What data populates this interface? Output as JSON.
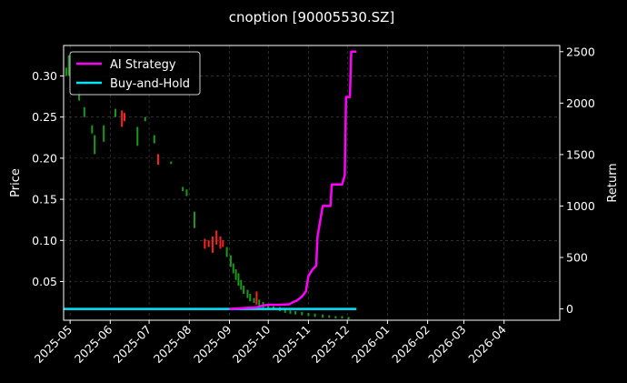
{
  "chart_data": {
    "type": "line",
    "title": "cnoption [90005530.SZ]",
    "left_axis": {
      "label": "Price",
      "ylim": [
        0.003,
        0.337
      ],
      "ticks": [
        0.05,
        0.1,
        0.15,
        0.2,
        0.25,
        0.3
      ],
      "tick_labels": [
        "0.05",
        "0.10",
        "0.15",
        "0.20",
        "0.25",
        "0.30"
      ]
    },
    "right_axis": {
      "label": "Return",
      "ylim": [
        -110,
        2560
      ],
      "ticks": [
        0,
        500,
        1000,
        1500,
        2000,
        2500
      ],
      "tick_labels": [
        "0",
        "500",
        "1000",
        "1500",
        "2000",
        "2500"
      ]
    },
    "x_axis": {
      "type": "date",
      "range": [
        "2025-04-26",
        "2026-05-14"
      ],
      "ticks": [
        "2025-05-01",
        "2025-06-01",
        "2025-07-01",
        "2025-08-01",
        "2025-09-01",
        "2025-10-01",
        "2025-11-01",
        "2025-12-01",
        "2026-01-01",
        "2026-02-01",
        "2026-03-01",
        "2026-04-01"
      ],
      "tick_labels": [
        "2025-05",
        "2025-06",
        "2025-07",
        "2025-08",
        "2025-09",
        "2025-10",
        "2025-11",
        "2025-12",
        "2026-01",
        "2026-02",
        "2026-03",
        "2026-04"
      ]
    },
    "grid": true,
    "legend": {
      "placement": "top-left",
      "entries": [
        "AI Strategy",
        "Buy-and-Hold"
      ]
    },
    "colors": {
      "background": "#000000",
      "ai_strategy": "#ff00ff",
      "buy_and_hold": "#00e5ff",
      "up": "#ff2020",
      "down": "#1a9a1a",
      "grid": "#4a4a4a"
    },
    "series": [
      {
        "name": "AI Strategy",
        "axis": "right",
        "points": [
          [
            "2025-09-01",
            0
          ],
          [
            "2025-09-08",
            5
          ],
          [
            "2025-09-15",
            10
          ],
          [
            "2025-09-22",
            15
          ],
          [
            "2025-09-26",
            30
          ],
          [
            "2025-10-01",
            40
          ],
          [
            "2025-10-10",
            40
          ],
          [
            "2025-10-17",
            45
          ],
          [
            "2025-10-20",
            65
          ],
          [
            "2025-10-23",
            80
          ],
          [
            "2025-10-27",
            120
          ],
          [
            "2025-10-30",
            170
          ],
          [
            "2025-11-01",
            320
          ],
          [
            "2025-11-04",
            380
          ],
          [
            "2025-11-07",
            420
          ],
          [
            "2025-11-08",
            700
          ],
          [
            "2025-11-12",
            1000
          ],
          [
            "2025-11-18",
            1000
          ],
          [
            "2025-11-19",
            1210
          ],
          [
            "2025-11-27",
            1210
          ],
          [
            "2025-11-29",
            1300
          ],
          [
            "2025-11-30",
            2060
          ],
          [
            "2025-12-03",
            2060
          ],
          [
            "2025-12-04",
            2500
          ],
          [
            "2025-12-08",
            2500
          ]
        ]
      },
      {
        "name": "Buy-and-Hold",
        "axis": "right",
        "points": [
          [
            "2025-04-26",
            0
          ],
          [
            "2025-12-08",
            0
          ]
        ]
      },
      {
        "name": "Price",
        "axis": "left",
        "type": "candles",
        "candles": [
          [
            "2025-04-28",
            0.3,
            0.31,
            "down"
          ],
          [
            "2025-04-30",
            0.3,
            0.325,
            "down"
          ],
          [
            "2025-05-08",
            0.27,
            0.282,
            "down"
          ],
          [
            "2025-05-12",
            0.25,
            0.262,
            "down"
          ],
          [
            "2025-05-18",
            0.23,
            0.24,
            "down"
          ],
          [
            "2025-05-20",
            0.205,
            0.228,
            "down"
          ],
          [
            "2025-05-27",
            0.22,
            0.24,
            "down"
          ],
          [
            "2025-06-05",
            0.25,
            0.26,
            "down"
          ],
          [
            "2025-06-10",
            0.238,
            0.258,
            "up"
          ],
          [
            "2025-06-12",
            0.245,
            0.255,
            "up"
          ],
          [
            "2025-06-22",
            0.215,
            0.238,
            "down"
          ],
          [
            "2025-06-28",
            0.245,
            0.25,
            "down"
          ],
          [
            "2025-07-05",
            0.218,
            0.228,
            "down"
          ],
          [
            "2025-07-08",
            0.192,
            0.205,
            "up"
          ],
          [
            "2025-07-18",
            0.193,
            0.196,
            "down"
          ],
          [
            "2025-07-27",
            0.16,
            0.165,
            "down"
          ],
          [
            "2025-07-30",
            0.154,
            0.162,
            "down"
          ],
          [
            "2025-08-05",
            0.115,
            0.135,
            "down"
          ],
          [
            "2025-08-13",
            0.09,
            0.102,
            "up"
          ],
          [
            "2025-08-16",
            0.092,
            0.1,
            "up"
          ],
          [
            "2025-08-19",
            0.085,
            0.105,
            "up"
          ],
          [
            "2025-08-22",
            0.095,
            0.112,
            "up"
          ],
          [
            "2025-08-25",
            0.09,
            0.105,
            "up"
          ],
          [
            "2025-08-27",
            0.092,
            0.1,
            "up"
          ],
          [
            "2025-08-30",
            0.08,
            0.092,
            "down"
          ],
          [
            "2025-09-02",
            0.068,
            0.082,
            "down"
          ],
          [
            "2025-09-04",
            0.06,
            0.072,
            "down"
          ],
          [
            "2025-09-06",
            0.052,
            0.065,
            "down"
          ],
          [
            "2025-09-08",
            0.045,
            0.06,
            "down"
          ],
          [
            "2025-09-10",
            0.04,
            0.052,
            "down"
          ],
          [
            "2025-09-12",
            0.035,
            0.045,
            "down"
          ],
          [
            "2025-09-15",
            0.03,
            0.04,
            "down"
          ],
          [
            "2025-09-17",
            0.026,
            0.035,
            "down"
          ],
          [
            "2025-09-20",
            0.024,
            0.03,
            "down"
          ],
          [
            "2025-09-22",
            0.022,
            0.038,
            "up"
          ],
          [
            "2025-09-24",
            0.02,
            0.028,
            "down"
          ],
          [
            "2025-09-27",
            0.018,
            0.025,
            "down"
          ],
          [
            "2025-10-01",
            0.016,
            0.022,
            "down"
          ],
          [
            "2025-10-05",
            0.017,
            0.02,
            "down"
          ],
          [
            "2025-10-10",
            0.014,
            0.019,
            "down"
          ],
          [
            "2025-10-14",
            0.012,
            0.017,
            "down"
          ],
          [
            "2025-10-18",
            0.011,
            0.015,
            "down"
          ],
          [
            "2025-10-22",
            0.01,
            0.014,
            "down"
          ],
          [
            "2025-10-27",
            0.009,
            0.013,
            "down"
          ],
          [
            "2025-11-01",
            0.008,
            0.012,
            "down"
          ],
          [
            "2025-11-06",
            0.007,
            0.011,
            "down"
          ],
          [
            "2025-11-12",
            0.006,
            0.01,
            "down"
          ],
          [
            "2025-11-17",
            0.006,
            0.009,
            "down"
          ],
          [
            "2025-11-22",
            0.005,
            0.008,
            "down"
          ],
          [
            "2025-11-27",
            0.005,
            0.008,
            "down"
          ],
          [
            "2025-12-02",
            0.004,
            0.007,
            "down"
          ]
        ]
      }
    ]
  }
}
